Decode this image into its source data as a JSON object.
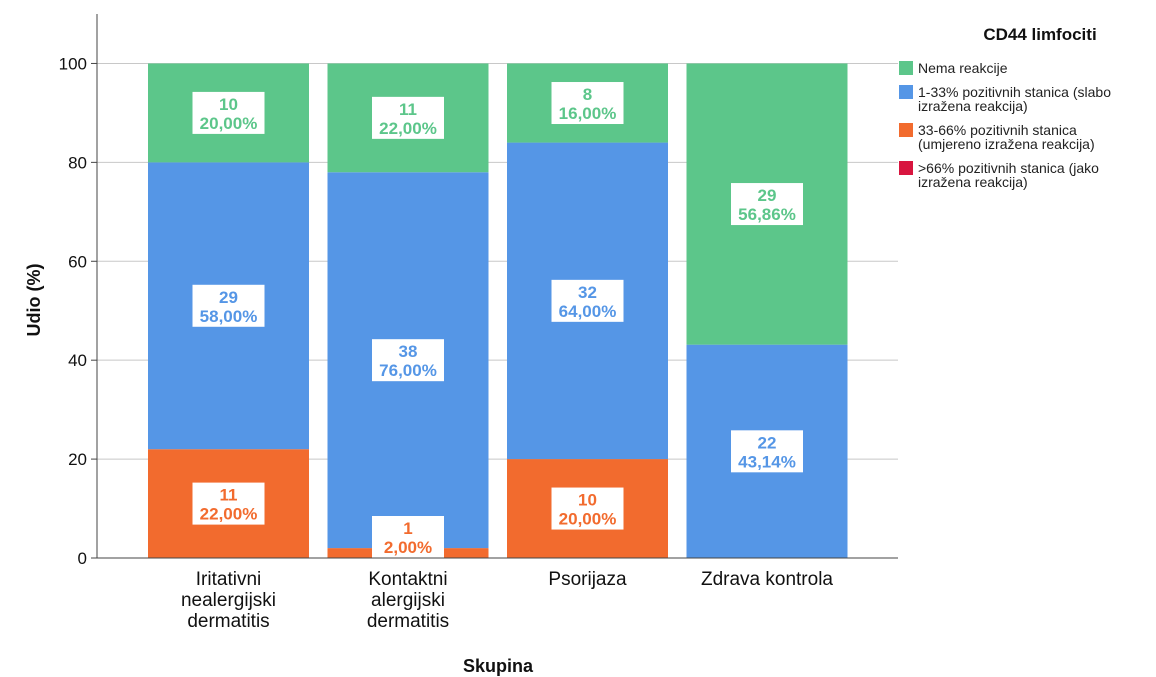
{
  "chart_data": {
    "type": "bar",
    "stacked": true,
    "categories": [
      "Iritativni nealergijski dermatitis",
      "Kontaktni alergijski dermatitis",
      "Psorijaza",
      "Zdrava kontrola"
    ],
    "category_lines": [
      [
        "Iritativni",
        "nealergijski",
        "dermatitis"
      ],
      [
        "Kontaktni",
        "alergijski",
        "dermatitis"
      ],
      [
        "Psorijaza"
      ],
      [
        "Zdrava kontrola"
      ]
    ],
    "series": [
      {
        "name": "33-66% pozitivnih stanica (umjereno izražena reakcija)",
        "legend_lines": [
          "33-66% pozitivnih stanica",
          "(umjereno izražena reakcija)"
        ],
        "color": "#F26B2E",
        "values": [
          22.0,
          2.0,
          20.0,
          0
        ],
        "counts": [
          "11",
          "1",
          "10",
          null
        ],
        "percent_labels": [
          "22,00%",
          "2,00%",
          "20,00%",
          null
        ]
      },
      {
        "name": "1-33% pozitivnih stanica (slabo izražena reakcija)",
        "legend_lines": [
          "1-33% pozitivnih stanica (slabo",
          "izražena reakcija)"
        ],
        "color": "#5596E6",
        "values": [
          58.0,
          76.0,
          64.0,
          43.14
        ],
        "counts": [
          "29",
          "38",
          "32",
          "22"
        ],
        "percent_labels": [
          "58,00%",
          "76,00%",
          "64,00%",
          "43,14%"
        ]
      },
      {
        "name": "Nema reakcije",
        "legend_lines": [
          "Nema reakcije"
        ],
        "color": "#5CC68A",
        "values": [
          20.0,
          22.0,
          16.0,
          56.86
        ],
        "counts": [
          "10",
          "11",
          "8",
          "29"
        ],
        "percent_labels": [
          "20,00%",
          "22,00%",
          "16,00%",
          "56,86%"
        ]
      },
      {
        "name": ">66% pozitivnih stanica (jako izražena reakcija)",
        "legend_lines": [
          ">66% pozitivnih stanica (jako",
          "izražena reakcija)"
        ],
        "color": "#D8153F",
        "values": [
          0,
          0,
          0,
          0
        ],
        "counts": [
          null,
          null,
          null,
          null
        ],
        "percent_labels": [
          null,
          null,
          null,
          null
        ]
      }
    ],
    "legend_order": [
      2,
      1,
      0,
      3
    ],
    "title": "",
    "legend_title": "CD44 limfociti",
    "xlabel": "Skupina",
    "ylabel": "Udio (%)",
    "ylim": [
      0,
      110
    ],
    "yticks": [
      0,
      20,
      40,
      60,
      80,
      100
    ],
    "grid": true,
    "legend_position": "top-right"
  }
}
